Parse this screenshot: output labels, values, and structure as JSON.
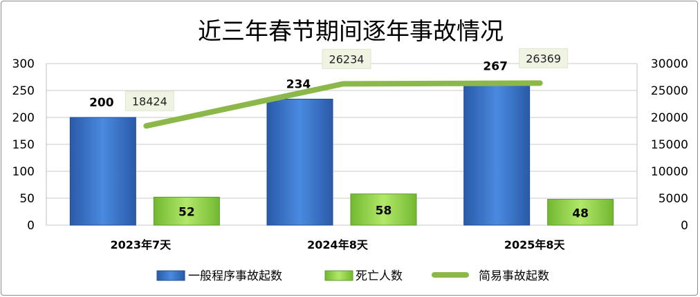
{
  "chart_data": {
    "type": "bar",
    "title": "近三年春节期间逐年事故情况",
    "categories": [
      "2023年7天",
      "2024年8天",
      "2025年8天"
    ],
    "series": [
      {
        "name": "一般程序事故起数",
        "kind": "bar",
        "axis": "left",
        "values": [
          200,
          234,
          267
        ],
        "color": "#3a78c8"
      },
      {
        "name": "死亡人数",
        "kind": "bar",
        "axis": "left",
        "values": [
          52,
          58,
          48
        ],
        "color": "#8ccf3c"
      },
      {
        "name": "简易事故起数",
        "kind": "line",
        "axis": "right",
        "values": [
          18424,
          26234,
          26369
        ],
        "color": "#8cb84a"
      }
    ],
    "ylim": [
      0,
      300
    ],
    "y2lim": [
      0,
      30000
    ],
    "yticks": [
      "0",
      "50",
      "100",
      "150",
      "200",
      "250",
      "300"
    ],
    "y2ticks": [
      "0",
      "5000",
      "10000",
      "15000",
      "20000",
      "25000",
      "30000"
    ],
    "grid": true,
    "legend": "bottom"
  }
}
